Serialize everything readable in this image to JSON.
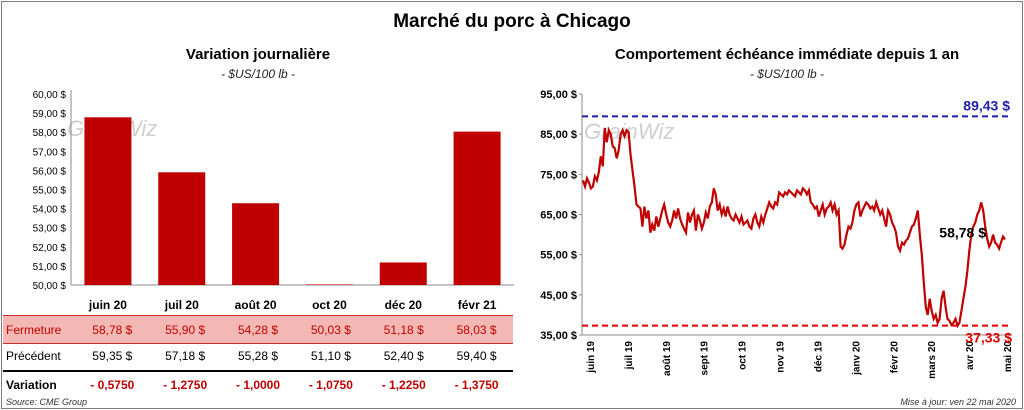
{
  "header": {
    "title": "Marché du porc à Chicago"
  },
  "left": {
    "title": "Variation  journalière",
    "unit": "- $US/100 lb -"
  },
  "right": {
    "title": "Comportement  échéance immédiate depuis 1 an",
    "unit": "- $US/100 lb -"
  },
  "watermark": "GrainWiz",
  "table": {
    "rows": [
      {
        "label": "Fermeture",
        "cells": [
          "58,78  $",
          "55,90  $",
          "54,28  $",
          "50,03  $",
          "51,18  $",
          "58,03  $"
        ]
      },
      {
        "label": "Précédent",
        "cells": [
          "59,35  $",
          "57,18  $",
          "55,28  $",
          "51,10  $",
          "52,40  $",
          "59,40  $"
        ]
      },
      {
        "label": "Variation",
        "cells": [
          "- 0,5750",
          "- 1,2750",
          "- 1,0000",
          "- 1,0750",
          "- 1,2250",
          "- 1,3750"
        ]
      }
    ]
  },
  "footer": {
    "source": "Source: CME Group",
    "updated": "Mise à jour: ven 22 mai 2020"
  },
  "colors": {
    "bar": "#c00000",
    "line": "#c00000",
    "max_line": "#1f1fa8",
    "min_line": "#e00000"
  },
  "chart_data": [
    {
      "type": "bar",
      "categories": [
        "juin 20",
        "juil 20",
        "août 20",
        "oct 20",
        "déc 20",
        "févr 21"
      ],
      "values": [
        58.78,
        55.9,
        54.28,
        50.03,
        51.18,
        58.03
      ],
      "ylim": [
        50,
        60
      ],
      "yticks": [
        "50,00 $",
        "51,00 $",
        "52,00 $",
        "53,00 $",
        "54,00 $",
        "55,00 $",
        "56,00 $",
        "57,00 $",
        "58,00 $",
        "59,00 $",
        "60,00 $"
      ],
      "grid": false
    },
    {
      "type": "line",
      "ylim": [
        35,
        95
      ],
      "yticks": [
        "35,00 $",
        "45,00 $",
        "55,00 $",
        "65,00 $",
        "75,00 $",
        "85,00 $",
        "95,00 $"
      ],
      "xticks": [
        "juin 19",
        "juil 19",
        "août 19",
        "sept 19",
        "oct 19",
        "nov 19",
        "déc 19",
        "janv 20",
        "févr 20",
        "mars 20",
        "avr 20",
        "mai 20"
      ],
      "values": [
        73.5,
        72.0,
        74.0,
        73.0,
        71.5,
        72.0,
        74.5,
        73.5,
        75.5,
        79.5,
        77.0,
        86.5,
        83.0,
        86.0,
        85.0,
        82.0,
        81.5,
        79.0,
        81.0,
        85.0,
        86.0,
        84.5,
        86.0,
        85.5,
        80.0,
        76.0,
        72.0,
        67.5,
        67.0,
        66.5,
        62.0,
        67.0,
        64.0,
        66.0,
        60.5,
        62.5,
        61.0,
        64.5,
        62.0,
        64.0,
        66.0,
        67.5,
        65.0,
        63.0,
        62.0,
        63.5,
        66.0,
        64.0,
        66.5,
        64.0,
        62.5,
        61.5,
        60.5,
        65.5,
        63.0,
        65.0,
        66.0,
        61.0,
        65.0,
        63.5,
        61.5,
        63.0,
        65.5,
        64.0,
        67.0,
        68.0,
        71.5,
        70.0,
        66.0,
        67.5,
        65.0,
        66.5,
        64.5,
        67.0,
        65.0,
        64.0,
        63.5,
        65.0,
        64.0,
        63.0,
        64.5,
        62.5,
        63.0,
        63.5,
        62.0,
        61.5,
        64.0,
        65.0,
        63.0,
        62.0,
        64.5,
        63.0,
        65.0,
        66.5,
        68.0,
        67.0,
        66.5,
        68.0,
        67.5,
        70.5,
        70.0,
        69.5,
        70.5,
        70.0,
        71.0,
        70.5,
        70.0,
        69.5,
        71.0,
        70.5,
        70.0,
        71.5,
        71.0,
        70.0,
        71.0,
        68.0,
        67.5,
        66.5,
        67.0,
        64.5,
        66.0,
        67.5,
        65.0,
        66.5,
        67.0,
        68.0,
        66.0,
        67.5,
        65.0,
        66.0,
        57.0,
        56.5,
        57.5,
        60.0,
        62.0,
        61.5,
        63.0,
        66.0,
        67.5,
        68.0,
        64.5,
        66.0,
        67.0,
        68.0,
        67.5,
        66.5,
        67.0,
        66.0,
        68.0,
        66.5,
        65.0,
        66.0,
        64.0,
        62.0,
        66.0,
        65.0,
        63.0,
        62.0,
        60.5,
        57.0,
        56.0,
        58.0,
        57.5,
        58.5,
        59.0,
        60.5,
        62.0,
        62.5,
        64.0,
        66.0,
        60.0,
        55.0,
        48.0,
        42.0,
        40.0,
        44.0,
        41.0,
        39.0,
        40.0,
        38.0,
        39.0,
        44.0,
        46.0,
        42.0,
        39.0,
        38.5,
        37.5,
        38.0,
        39.0,
        37.3,
        38.0,
        41.0,
        44.0,
        47.0,
        51.0,
        56.0,
        60.0,
        62.0,
        63.0,
        65.0,
        66.0,
        68.0,
        66.0,
        62.0,
        59.0,
        57.0,
        58.0,
        60.0,
        58.0,
        57.5,
        56.5,
        58.0,
        59.5,
        58.78
      ],
      "max_value": 89.43,
      "min_value": 37.33,
      "labels": {
        "max": "89,43 $",
        "min": "37,33 $",
        "last": "58,78 $"
      },
      "grid": false
    }
  ]
}
